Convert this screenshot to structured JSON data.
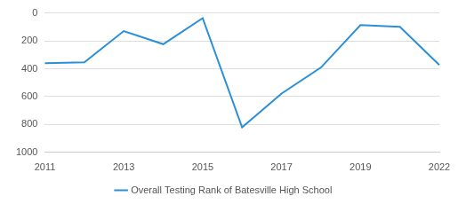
{
  "chart_data": {
    "type": "line",
    "categories": [
      "2011",
      null,
      "2013",
      null,
      "2015",
      null,
      "2017",
      null,
      "2019",
      null,
      "2022"
    ],
    "series": [
      {
        "name": "Overall Testing Rank of Batesville High School",
        "color": "#2b8fd6",
        "values": [
          360,
          354,
          130,
          224,
          37,
          820,
          578,
          391,
          87,
          99,
          373
        ]
      }
    ],
    "ylim": [
      1000,
      0
    ],
    "yticks": [
      0,
      200,
      400,
      600,
      800,
      1000
    ],
    "grid": true,
    "legend": "bottom"
  }
}
